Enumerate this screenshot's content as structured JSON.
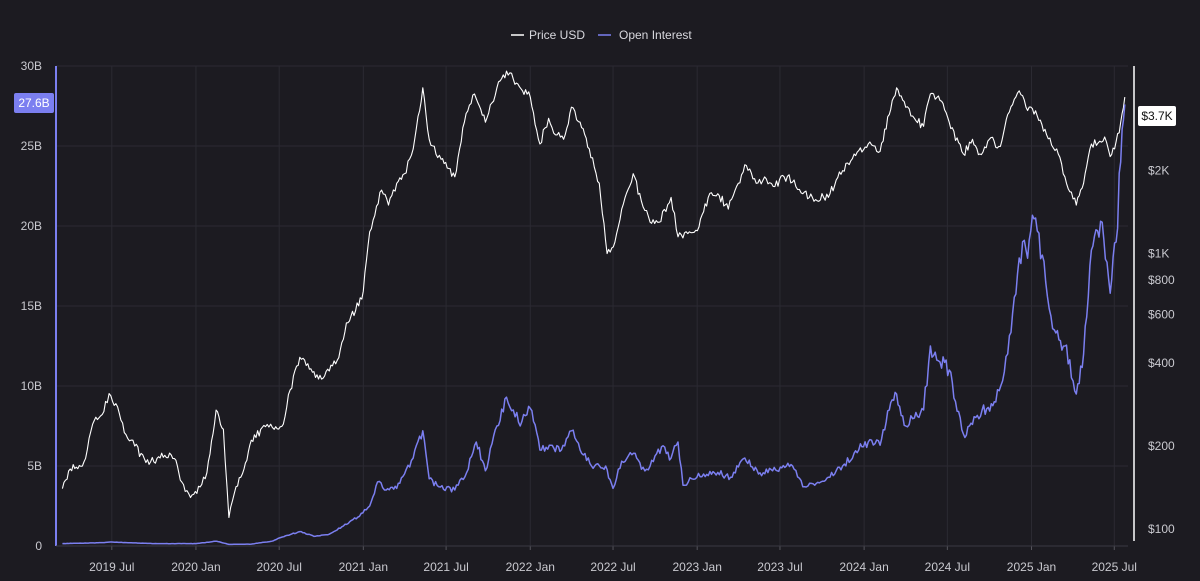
{
  "colors": {
    "background": "#1c1b21",
    "price": "#ffffff",
    "open_interest": "#7b7ff0",
    "grid": "#2b2a32",
    "axis_text": "#c9c9cf"
  },
  "chart_data": {
    "type": "line",
    "legend": {
      "placement": "top-center"
    },
    "grid": true,
    "x_axis": {
      "range": [
        "2019-03-01",
        "2025-07-31"
      ],
      "ticks": [
        {
          "date": "2019-07-01",
          "label": "2019 Jul"
        },
        {
          "date": "2020-01-01",
          "label": "2020 Jan"
        },
        {
          "date": "2020-07-01",
          "label": "2020 Jul"
        },
        {
          "date": "2021-01-01",
          "label": "2021 Jan"
        },
        {
          "date": "2021-07-01",
          "label": "2021 Jul"
        },
        {
          "date": "2022-01-01",
          "label": "2022 Jan"
        },
        {
          "date": "2022-07-01",
          "label": "2022 Jul"
        },
        {
          "date": "2023-01-01",
          "label": "2023 Jan"
        },
        {
          "date": "2023-07-01",
          "label": "2023 Jul"
        },
        {
          "date": "2024-01-01",
          "label": "2024 Jan"
        },
        {
          "date": "2024-07-01",
          "label": "2024 Jul"
        },
        {
          "date": "2025-01-01",
          "label": "2025 Jan"
        },
        {
          "date": "2025-07-01",
          "label": "2025 Jul"
        }
      ]
    },
    "y_left": {
      "range": [
        0,
        30000000000
      ],
      "ticks": [
        {
          "value": 0,
          "label": "0"
        },
        {
          "value": 5000000000,
          "label": "5B"
        },
        {
          "value": 10000000000,
          "label": "10B"
        },
        {
          "value": 15000000000,
          "label": "15B"
        },
        {
          "value": 20000000000,
          "label": "20B"
        },
        {
          "value": 25000000000,
          "label": "25B"
        },
        {
          "value": 30000000000,
          "label": "30B"
        }
      ],
      "current_label": "27.6B",
      "current_value": 27600000000
    },
    "y_right": {
      "scale": "log",
      "range": [
        95,
        4800
      ],
      "ticks": [
        {
          "value": 100,
          "label": "$100"
        },
        {
          "value": 200,
          "label": "$200"
        },
        {
          "value": 400,
          "label": "$400"
        },
        {
          "value": 600,
          "label": "$600"
        },
        {
          "value": 800,
          "label": "$800"
        },
        {
          "value": 1000,
          "label": "$1K"
        },
        {
          "value": 2000,
          "label": "$2K"
        }
      ],
      "current_label": "$3.7K",
      "current_value": 3700
    },
    "series": [
      {
        "name": "Price USD",
        "axis": "right",
        "color": "#ffffff",
        "points": [
          [
            "2019-03-15",
            140
          ],
          [
            "2019-04-01",
            165
          ],
          [
            "2019-05-01",
            175
          ],
          [
            "2019-05-20",
            240
          ],
          [
            "2019-06-10",
            260
          ],
          [
            "2019-06-25",
            310
          ],
          [
            "2019-07-10",
            285
          ],
          [
            "2019-08-01",
            220
          ],
          [
            "2019-08-20",
            200
          ],
          [
            "2019-09-10",
            180
          ],
          [
            "2019-10-01",
            175
          ],
          [
            "2019-10-25",
            185
          ],
          [
            "2019-11-15",
            180
          ],
          [
            "2019-12-01",
            148
          ],
          [
            "2019-12-20",
            130
          ],
          [
            "2020-01-10",
            142
          ],
          [
            "2020-01-25",
            160
          ],
          [
            "2020-02-14",
            270
          ],
          [
            "2020-03-01",
            230
          ],
          [
            "2020-03-13",
            110
          ],
          [
            "2020-03-25",
            135
          ],
          [
            "2020-04-15",
            165
          ],
          [
            "2020-05-01",
            210
          ],
          [
            "2020-06-01",
            235
          ],
          [
            "2020-06-20",
            230
          ],
          [
            "2020-07-10",
            240
          ],
          [
            "2020-07-25",
            320
          ],
          [
            "2020-08-15",
            420
          ],
          [
            "2020-09-05",
            380
          ],
          [
            "2020-09-25",
            350
          ],
          [
            "2020-10-15",
            380
          ],
          [
            "2020-11-05",
            410
          ],
          [
            "2020-11-25",
            560
          ],
          [
            "2020-12-15",
            620
          ],
          [
            "2021-01-01",
            730
          ],
          [
            "2021-01-15",
            1200
          ],
          [
            "2021-02-10",
            1700
          ],
          [
            "2021-02-25",
            1500
          ],
          [
            "2021-03-15",
            1800
          ],
          [
            "2021-04-01",
            1950
          ],
          [
            "2021-04-20",
            2400
          ],
          [
            "2021-05-11",
            4000
          ],
          [
            "2021-05-25",
            2600
          ],
          [
            "2021-06-20",
            2200
          ],
          [
            "2021-07-20",
            1900
          ],
          [
            "2021-08-10",
            3000
          ],
          [
            "2021-09-01",
            3800
          ],
          [
            "2021-09-25",
            3000
          ],
          [
            "2021-10-20",
            4000
          ],
          [
            "2021-11-10",
            4600
          ],
          [
            "2021-11-25",
            4300
          ],
          [
            "2021-12-15",
            3900
          ],
          [
            "2022-01-01",
            3700
          ],
          [
            "2022-01-22",
            2500
          ],
          [
            "2022-02-10",
            3100
          ],
          [
            "2022-02-25",
            2700
          ],
          [
            "2022-03-15",
            2600
          ],
          [
            "2022-04-01",
            3400
          ],
          [
            "2022-04-20",
            3000
          ],
          [
            "2022-05-10",
            2400
          ],
          [
            "2022-06-01",
            1800
          ],
          [
            "2022-06-18",
            1000
          ],
          [
            "2022-07-05",
            1100
          ],
          [
            "2022-07-20",
            1450
          ],
          [
            "2022-08-14",
            1950
          ],
          [
            "2022-09-01",
            1550
          ],
          [
            "2022-09-20",
            1300
          ],
          [
            "2022-10-10",
            1300
          ],
          [
            "2022-11-05",
            1600
          ],
          [
            "2022-11-20",
            1150
          ],
          [
            "2022-12-15",
            1200
          ],
          [
            "2023-01-05",
            1250
          ],
          [
            "2023-01-25",
            1600
          ],
          [
            "2023-02-15",
            1650
          ],
          [
            "2023-03-10",
            1450
          ],
          [
            "2023-04-01",
            1800
          ],
          [
            "2023-04-15",
            2100
          ],
          [
            "2023-05-10",
            1800
          ],
          [
            "2023-06-01",
            1870
          ],
          [
            "2023-06-20",
            1750
          ],
          [
            "2023-07-10",
            1900
          ],
          [
            "2023-08-01",
            1850
          ],
          [
            "2023-08-20",
            1650
          ],
          [
            "2023-09-10",
            1600
          ],
          [
            "2023-10-15",
            1600
          ],
          [
            "2023-11-01",
            1850
          ],
          [
            "2023-11-15",
            2000
          ],
          [
            "2023-12-10",
            2300
          ],
          [
            "2024-01-10",
            2500
          ],
          [
            "2024-02-05",
            2350
          ],
          [
            "2024-02-25",
            3200
          ],
          [
            "2024-03-12",
            4000
          ],
          [
            "2024-04-01",
            3400
          ],
          [
            "2024-04-20",
            3100
          ],
          [
            "2024-05-10",
            2900
          ],
          [
            "2024-05-25",
            3800
          ],
          [
            "2024-06-15",
            3600
          ],
          [
            "2024-07-05",
            3000
          ],
          [
            "2024-08-05",
            2300
          ],
          [
            "2024-08-25",
            2600
          ],
          [
            "2024-09-10",
            2300
          ],
          [
            "2024-10-01",
            2600
          ],
          [
            "2024-10-25",
            2450
          ],
          [
            "2024-11-10",
            3200
          ],
          [
            "2024-12-05",
            3900
          ],
          [
            "2024-12-20",
            3400
          ],
          [
            "2025-01-10",
            3300
          ],
          [
            "2025-02-03",
            2700
          ],
          [
            "2025-02-25",
            2400
          ],
          [
            "2025-03-15",
            1900
          ],
          [
            "2025-04-09",
            1500
          ],
          [
            "2025-04-25",
            1800
          ],
          [
            "2025-05-12",
            2500
          ],
          [
            "2025-06-10",
            2650
          ],
          [
            "2025-06-22",
            2250
          ],
          [
            "2025-07-05",
            2550
          ],
          [
            "2025-07-15",
            3000
          ],
          [
            "2025-07-24",
            3700
          ]
        ]
      },
      {
        "name": "Open Interest",
        "axis": "left",
        "color": "#7b7ff0",
        "points": [
          [
            "2019-03-15",
            0.15
          ],
          [
            "2019-06-01",
            0.2
          ],
          [
            "2019-07-01",
            0.25
          ],
          [
            "2019-10-01",
            0.15
          ],
          [
            "2020-01-01",
            0.15
          ],
          [
            "2020-02-15",
            0.3
          ],
          [
            "2020-03-13",
            0.1
          ],
          [
            "2020-05-01",
            0.12
          ],
          [
            "2020-06-15",
            0.3
          ],
          [
            "2020-07-01",
            0.5
          ],
          [
            "2020-08-15",
            0.9
          ],
          [
            "2020-09-15",
            0.6
          ],
          [
            "2020-10-15",
            0.7
          ],
          [
            "2020-11-15",
            1.2
          ],
          [
            "2020-12-20",
            1.8
          ],
          [
            "2021-01-15",
            2.5
          ],
          [
            "2021-02-01",
            4.0
          ],
          [
            "2021-02-20",
            3.5
          ],
          [
            "2021-03-15",
            3.6
          ],
          [
            "2021-04-01",
            4.5
          ],
          [
            "2021-04-20",
            5.5
          ],
          [
            "2021-05-11",
            7.2
          ],
          [
            "2021-05-25",
            4.2
          ],
          [
            "2021-06-15",
            3.7
          ],
          [
            "2021-07-20",
            3.5
          ],
          [
            "2021-08-15",
            4.6
          ],
          [
            "2021-09-05",
            6.5
          ],
          [
            "2021-09-25",
            4.7
          ],
          [
            "2021-10-20",
            7.5
          ],
          [
            "2021-11-10",
            9.3
          ],
          [
            "2021-11-25",
            8.5
          ],
          [
            "2021-12-10",
            7.5
          ],
          [
            "2022-01-01",
            8.6
          ],
          [
            "2022-01-22",
            6.0
          ],
          [
            "2022-02-15",
            6.3
          ],
          [
            "2022-03-10",
            6.0
          ],
          [
            "2022-04-01",
            7.2
          ],
          [
            "2022-04-20",
            6.0
          ],
          [
            "2022-05-15",
            5.0
          ],
          [
            "2022-06-15",
            5.0
          ],
          [
            "2022-07-01",
            3.6
          ],
          [
            "2022-07-20",
            5.3
          ],
          [
            "2022-08-15",
            5.8
          ],
          [
            "2022-09-01",
            4.8
          ],
          [
            "2022-09-20",
            5.0
          ],
          [
            "2022-10-15",
            6.2
          ],
          [
            "2022-11-05",
            5.5
          ],
          [
            "2022-11-20",
            6.5
          ],
          [
            "2022-12-01",
            3.8
          ],
          [
            "2022-12-20",
            4.2
          ],
          [
            "2023-01-15",
            4.5
          ],
          [
            "2023-02-15",
            4.6
          ],
          [
            "2023-03-15",
            4.3
          ],
          [
            "2023-04-15",
            5.5
          ],
          [
            "2023-05-15",
            4.5
          ],
          [
            "2023-06-15",
            4.7
          ],
          [
            "2023-07-15",
            5.0
          ],
          [
            "2023-08-01",
            4.8
          ],
          [
            "2023-08-20",
            3.7
          ],
          [
            "2023-09-15",
            3.8
          ],
          [
            "2023-10-15",
            4.3
          ],
          [
            "2023-11-15",
            5.0
          ],
          [
            "2023-12-10",
            5.8
          ],
          [
            "2024-01-10",
            6.5
          ],
          [
            "2024-02-05",
            6.3
          ],
          [
            "2024-02-25",
            8.5
          ],
          [
            "2024-03-12",
            9.5
          ],
          [
            "2024-04-01",
            7.5
          ],
          [
            "2024-04-20",
            8.0
          ],
          [
            "2024-05-10",
            8.5
          ],
          [
            "2024-05-25",
            12.5
          ],
          [
            "2024-06-15",
            11.5
          ],
          [
            "2024-07-05",
            11.0
          ],
          [
            "2024-08-05",
            7.0
          ],
          [
            "2024-08-25",
            7.6
          ],
          [
            "2024-09-15",
            8.5
          ],
          [
            "2024-10-15",
            9.0
          ],
          [
            "2024-11-10",
            12.0
          ],
          [
            "2024-12-05",
            18.0
          ],
          [
            "2024-12-20",
            18.5
          ],
          [
            "2025-01-10",
            20.5
          ],
          [
            "2025-02-01",
            16.5
          ],
          [
            "2025-02-20",
            13.5
          ],
          [
            "2025-03-15",
            12.5
          ],
          [
            "2025-04-09",
            9.5
          ],
          [
            "2025-04-25",
            12.0
          ],
          [
            "2025-05-12",
            18.5
          ],
          [
            "2025-06-01",
            20.3
          ],
          [
            "2025-06-22",
            15.8
          ],
          [
            "2025-07-05",
            19.0
          ],
          [
            "2025-07-15",
            24.0
          ],
          [
            "2025-07-24",
            27.6
          ]
        ]
      }
    ]
  }
}
